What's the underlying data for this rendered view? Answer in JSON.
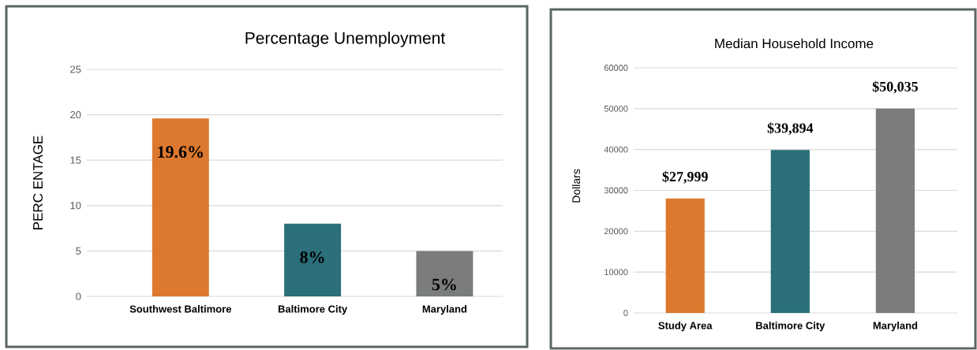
{
  "chart_data": [
    {
      "type": "bar",
      "title": "Percentage Unemployment",
      "ylabel": "PERC ENTAGE",
      "categories": [
        "Southwest Baltimore",
        "Baltimore City",
        "Maryland"
      ],
      "values": [
        19.6,
        8,
        5
      ],
      "colors": [
        "#dd792f",
        "#2a6f79",
        "#7a7d7c"
      ],
      "value_labels": [
        "19.6%",
        "8%",
        "5%"
      ],
      "ylim": [
        0,
        25
      ],
      "yticks": [
        0,
        5,
        10,
        15,
        20,
        25
      ],
      "grid": "y"
    },
    {
      "type": "bar",
      "title": "Median Household Income",
      "ylabel": "Dollars",
      "categories": [
        "Study Area",
        "Baltimore City",
        "Maryland"
      ],
      "values": [
        27999,
        39894,
        50035
      ],
      "colors": [
        "#dd792f",
        "#2a6f79",
        "#7a7d7c"
      ],
      "value_labels": [
        "$27,999",
        "$39,894",
        "$50,035"
      ],
      "ylim": [
        0,
        60000
      ],
      "yticks": [
        0,
        10000,
        20000,
        30000,
        40000,
        50000,
        60000
      ],
      "grid": "y"
    }
  ]
}
